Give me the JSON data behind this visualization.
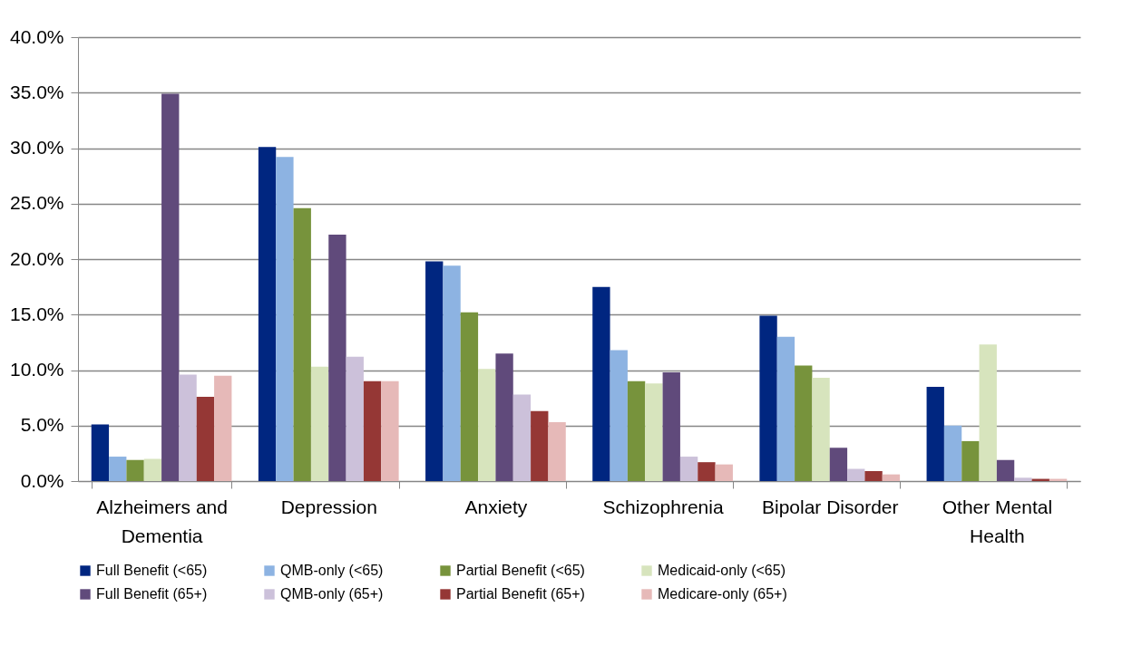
{
  "chart_data": {
    "type": "bar",
    "categories": [
      "Alzheimers and Dementia",
      "Depression",
      "Anxiety",
      "Schizophrenia",
      "Bipolar Disorder",
      "Other Mental Health"
    ],
    "series": [
      {
        "name": "Full Benefit (<65)",
        "color": "#002680",
        "values": [
          5.1,
          30.1,
          19.8,
          17.5,
          14.9,
          8.5
        ]
      },
      {
        "name": "QMB-only (<65)",
        "color": "#8db3e2",
        "values": [
          2.2,
          29.2,
          19.4,
          11.8,
          13.0,
          5.0
        ]
      },
      {
        "name": "Partial Benefit (<65)",
        "color": "#77933c",
        "values": [
          1.9,
          24.6,
          15.2,
          9.0,
          10.4,
          3.6
        ]
      },
      {
        "name": "Medicaid-only (<65)",
        "color": "#d7e4bd",
        "values": [
          2.0,
          10.3,
          10.1,
          8.8,
          9.3,
          12.3
        ]
      },
      {
        "name": "Full Benefit (65+)",
        "color": "#604a7b",
        "values": [
          34.9,
          22.2,
          11.5,
          9.8,
          3.0,
          1.9
        ]
      },
      {
        "name": "QMB-only (65+)",
        "color": "#ccc1da",
        "values": [
          9.6,
          11.2,
          7.8,
          2.2,
          1.1,
          0.3
        ]
      },
      {
        "name": "Partial Benefit (65+)",
        "color": "#953735",
        "values": [
          7.6,
          9.0,
          6.3,
          1.7,
          0.9,
          0.2
        ]
      },
      {
        "name": "Medicare-only (65+)",
        "color": "#e6b9b8",
        "values": [
          9.5,
          9.0,
          5.3,
          1.5,
          0.6,
          0.2
        ]
      }
    ],
    "ylim": [
      0,
      40
    ],
    "yticks": [
      {
        "value": 0,
        "label": "0.0%"
      },
      {
        "value": 5,
        "label": "5.0%"
      },
      {
        "value": 10,
        "label": "10.0%"
      },
      {
        "value": 15,
        "label": "15.0%"
      },
      {
        "value": 20,
        "label": "20.0%"
      },
      {
        "value": 25,
        "label": "25.0%"
      },
      {
        "value": 30,
        "label": "30.0%"
      },
      {
        "value": 35,
        "label": "35.0%"
      },
      {
        "value": 40,
        "label": "40.0%"
      }
    ],
    "grid": "y",
    "legend": "bottom"
  }
}
